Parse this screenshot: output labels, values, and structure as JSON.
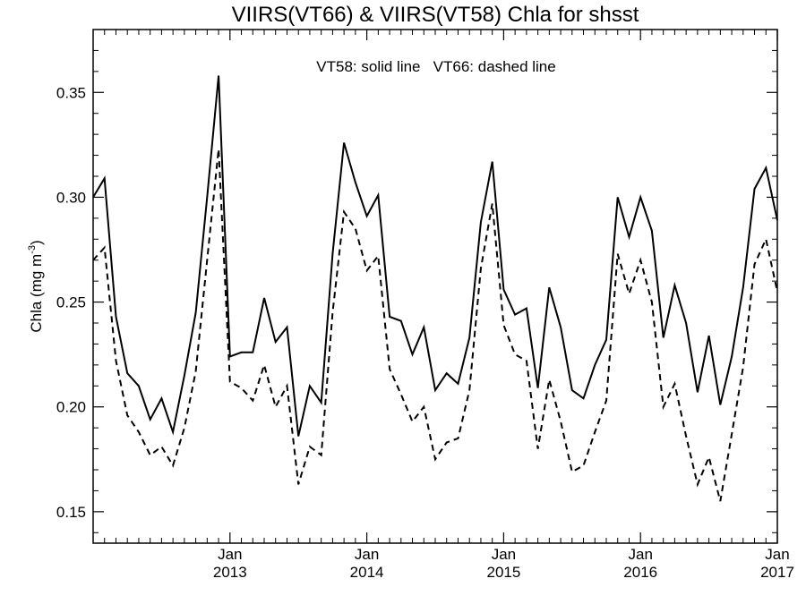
{
  "chart_data": {
    "type": "line",
    "title": "VIIRS(VT66) & VIIRS(VT58)  Chla for shsst",
    "annotation": "VT58: solid line   VT66: dashed line",
    "ylabel_main": "Chla (mg m",
    "ylabel_sup": "-3",
    "ylabel_close": ")",
    "xlabel": "",
    "x_start": "2012-01",
    "x_end": "2017-01",
    "x_ticks": [
      {
        "month": "Jan",
        "year": "2013",
        "date": "2013-01"
      },
      {
        "month": "Jan",
        "year": "2014",
        "date": "2014-01"
      },
      {
        "month": "Jan",
        "year": "2015",
        "date": "2015-01"
      },
      {
        "month": "Jan",
        "year": "2016",
        "date": "2016-01"
      },
      {
        "month": "Jan",
        "year": "2017",
        "date": "2017-01"
      }
    ],
    "ylim": [
      0.135,
      0.38
    ],
    "y_ticks": [
      0.15,
      0.2,
      0.25,
      0.3,
      0.35
    ],
    "y_tick_labels": [
      "0.15",
      "0.20",
      "0.25",
      "0.30",
      "0.35"
    ],
    "x": [
      "2012-01",
      "2012-02",
      "2012-03",
      "2012-04",
      "2012-05",
      "2012-06",
      "2012-07",
      "2012-08",
      "2012-09",
      "2012-10",
      "2012-11",
      "2012-12",
      "2013-01",
      "2013-02",
      "2013-03",
      "2013-04",
      "2013-05",
      "2013-06",
      "2013-07",
      "2013-08",
      "2013-09",
      "2013-10",
      "2013-11",
      "2013-12",
      "2014-01",
      "2014-02",
      "2014-03",
      "2014-04",
      "2014-05",
      "2014-06",
      "2014-07",
      "2014-08",
      "2014-09",
      "2014-10",
      "2014-11",
      "2014-12",
      "2015-01",
      "2015-02",
      "2015-03",
      "2015-04",
      "2015-05",
      "2015-06",
      "2015-07",
      "2015-08",
      "2015-09",
      "2015-10",
      "2015-11",
      "2015-12",
      "2016-01",
      "2016-02",
      "2016-03",
      "2016-04",
      "2016-05",
      "2016-06",
      "2016-07",
      "2016-08",
      "2016-09",
      "2016-10",
      "2016-11",
      "2016-12",
      "2017-01"
    ],
    "series": [
      {
        "name": "VT58",
        "style": "solid",
        "color": "#000000",
        "values": [
          0.3,
          0.309,
          0.243,
          0.216,
          0.21,
          0.194,
          0.204,
          0.188,
          0.215,
          0.245,
          0.3,
          0.358,
          0.224,
          0.226,
          0.226,
          0.252,
          0.231,
          0.238,
          0.186,
          0.21,
          0.202,
          0.273,
          0.326,
          0.307,
          0.291,
          0.301,
          0.243,
          0.241,
          0.225,
          0.238,
          0.208,
          0.216,
          0.211,
          0.233,
          0.288,
          0.317,
          0.256,
          0.244,
          0.247,
          0.209,
          0.257,
          0.238,
          0.208,
          0.204,
          0.22,
          0.232,
          0.3,
          0.281,
          0.3,
          0.284,
          0.233,
          0.258,
          0.24,
          0.207,
          0.234,
          0.201,
          0.224,
          0.257,
          0.304,
          0.314,
          0.289
        ]
      },
      {
        "name": "VT66",
        "style": "dashed",
        "color": "#000000",
        "values": [
          0.27,
          0.276,
          0.222,
          0.196,
          0.188,
          0.177,
          0.181,
          0.172,
          0.19,
          0.217,
          0.27,
          0.323,
          0.212,
          0.209,
          0.203,
          0.22,
          0.2,
          0.21,
          0.163,
          0.181,
          0.177,
          0.245,
          0.293,
          0.285,
          0.265,
          0.272,
          0.218,
          0.206,
          0.193,
          0.2,
          0.175,
          0.183,
          0.185,
          0.208,
          0.266,
          0.297,
          0.239,
          0.225,
          0.222,
          0.18,
          0.213,
          0.193,
          0.169,
          0.172,
          0.188,
          0.203,
          0.273,
          0.254,
          0.27,
          0.25,
          0.2,
          0.211,
          0.186,
          0.163,
          0.176,
          0.155,
          0.187,
          0.219,
          0.268,
          0.28,
          0.255
        ]
      }
    ],
    "grid": false,
    "legend": "none"
  }
}
